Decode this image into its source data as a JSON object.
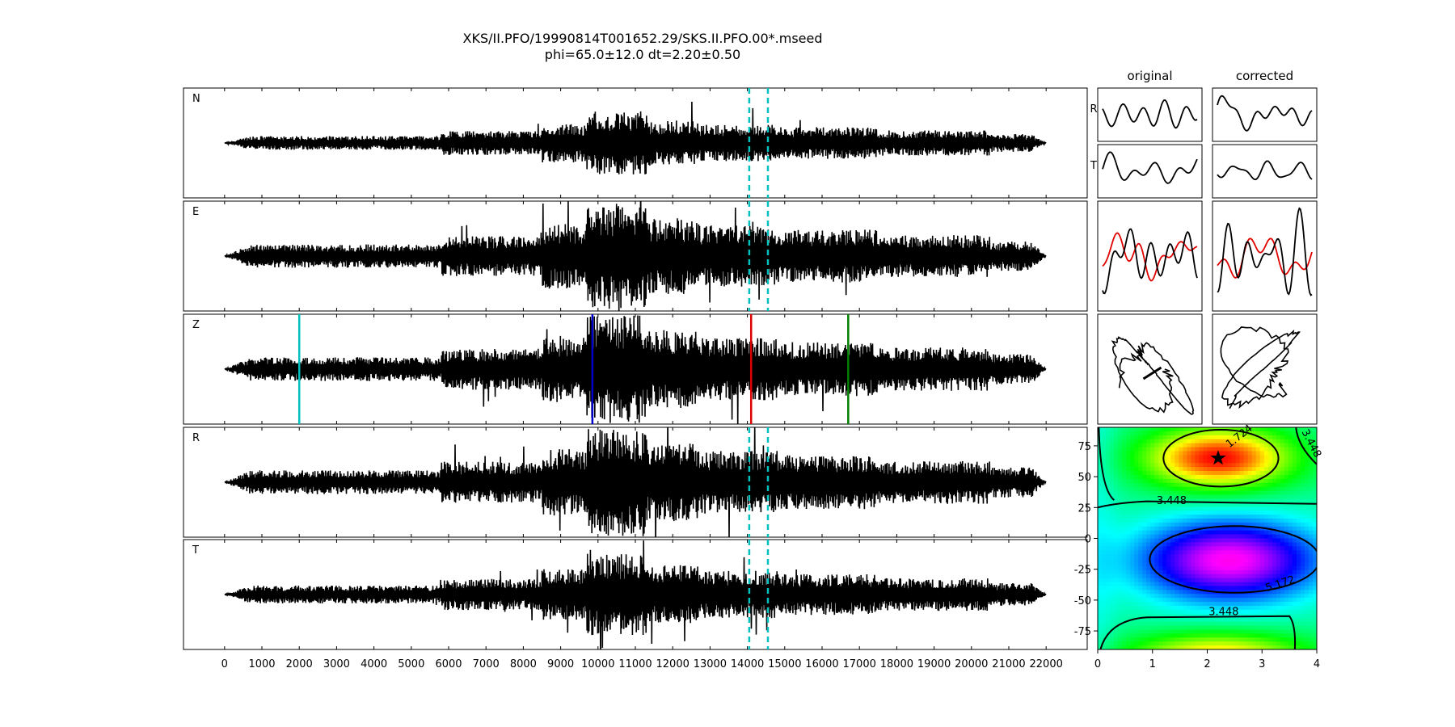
{
  "title": {
    "line1": "XKS/II.PFO/19990814T001652.29/SKS.II.PFO.00*.mseed",
    "line2": "phi=65.0±12.0 dt=2.20±0.50"
  },
  "column_titles": [
    "original",
    "corrected"
  ],
  "row_labels": [
    "R",
    "T"
  ],
  "colors": {
    "trace": "#000000",
    "window_marker": "#00bfbf",
    "pick_cyan": "#00bfbf",
    "pick_blue": "#0000cc",
    "pick_red": "#dd0000",
    "pick_green": "#008000",
    "overlay_red": "#e00000"
  },
  "chart_data": [
    {
      "type": "line",
      "panels": [
        "N",
        "E",
        "Z",
        "R",
        "T"
      ],
      "x_ticks": [
        0,
        1000,
        2000,
        3000,
        4000,
        5000,
        6000,
        7000,
        8000,
        9000,
        10000,
        11000,
        12000,
        13000,
        14000,
        15000,
        16000,
        17000,
        18000,
        19000,
        20000,
        21000,
        22000
      ],
      "xlim": [
        -1100,
        23100
      ],
      "data_range": [
        0,
        22000
      ],
      "window_markers": [
        14050,
        14550
      ],
      "window_marker_panels": [
        "N",
        "E",
        "R",
        "T"
      ],
      "picks": [
        {
          "x": 2000,
          "color": "cyan"
        },
        {
          "x": 9850,
          "color": "blue"
        },
        {
          "x": 14100,
          "color": "red"
        },
        {
          "x": 16700,
          "color": "green"
        }
      ],
      "pick_panel": "Z"
    },
    {
      "type": "line",
      "title": "original",
      "rows": [
        "R",
        "T",
        "overlay",
        "particle-motion"
      ]
    },
    {
      "type": "line",
      "title": "corrected",
      "rows": [
        "R",
        "T",
        "overlay",
        "particle-motion"
      ]
    },
    {
      "type": "heatmap",
      "x_ticks": [
        0,
        1,
        2,
        3,
        4
      ],
      "y_ticks": [
        75,
        50,
        25,
        0,
        -25,
        -50,
        -75
      ],
      "xlim": [
        0,
        4
      ],
      "ylim": [
        -90,
        90
      ],
      "contour_labels": [
        "1.724",
        "3.448",
        "3.448",
        "5.172",
        "3.448"
      ],
      "best_fit": {
        "dt": 2.2,
        "phi": 65.0
      }
    }
  ]
}
